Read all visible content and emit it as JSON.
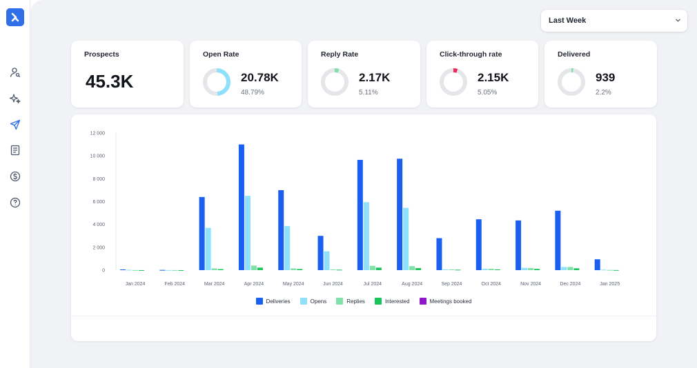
{
  "filter": {
    "selected": "Last Week"
  },
  "cards": [
    {
      "title": "Prospects",
      "value": "45.3K"
    },
    {
      "title": "Open Rate",
      "value": "20.78K",
      "percent": "48.79%",
      "fraction": 0.4879,
      "color": "#8fe0fb"
    },
    {
      "title": "Reply Rate",
      "value": "2.17K",
      "percent": "5.11%",
      "fraction": 0.0511,
      "color": "#7fe0a8"
    },
    {
      "title": "Click-through rate",
      "value": "2.15K",
      "percent": "5.05%",
      "fraction": 0.0505,
      "color": "#f0275f"
    },
    {
      "title": "Delivered",
      "value": "939",
      "percent": "2.2%",
      "fraction": 0.022,
      "color": "#7fe0a8"
    }
  ],
  "sidebar": {
    "icons": [
      "prospects-icon",
      "ai-sparkle-icon",
      "campaigns-send-icon",
      "document-icon",
      "billing-dollar-icon",
      "help-icon"
    ]
  },
  "chart_data": {
    "type": "bar",
    "categories": [
      "Jan 2024",
      "Feb 2024",
      "Mar 2024",
      "Apr 2024",
      "May 2024",
      "Jun 2024",
      "Jul 2024",
      "Aug 2024",
      "Sep 2024",
      "Oct 2024",
      "Nov 2024",
      "Dec 2024",
      "Jan 2025"
    ],
    "yticks": [
      "0",
      "2 000",
      "4 000",
      "6 000",
      "8 000",
      "10 000",
      "12 000"
    ],
    "ylim": [
      0,
      12000
    ],
    "series": [
      {
        "name": "Deliveries",
        "color": "#1a5ff0",
        "values": [
          60,
          20,
          6400,
          11000,
          7000,
          3000,
          9650,
          9750,
          2800,
          4450,
          4350,
          5200,
          950
        ]
      },
      {
        "name": "Opens",
        "color": "#8fe0fb",
        "values": [
          30,
          10,
          3700,
          6500,
          3850,
          1650,
          5950,
          5450,
          70,
          120,
          200,
          280,
          40
        ]
      },
      {
        "name": "Replies",
        "color": "#7fe0a8",
        "values": [
          10,
          5,
          150,
          400,
          150,
          60,
          380,
          350,
          60,
          120,
          180,
          280,
          20
        ]
      },
      {
        "name": "Interested",
        "color": "#19c45a",
        "values": [
          5,
          2,
          90,
          220,
          100,
          40,
          220,
          180,
          40,
          60,
          110,
          160,
          10
        ]
      },
      {
        "name": "Meetings booked",
        "color": "#8e17c9",
        "values": [
          0,
          0,
          0,
          0,
          0,
          0,
          0,
          0,
          0,
          0,
          0,
          0,
          0
        ]
      }
    ],
    "legend": "bottom-center",
    "grid": false
  }
}
